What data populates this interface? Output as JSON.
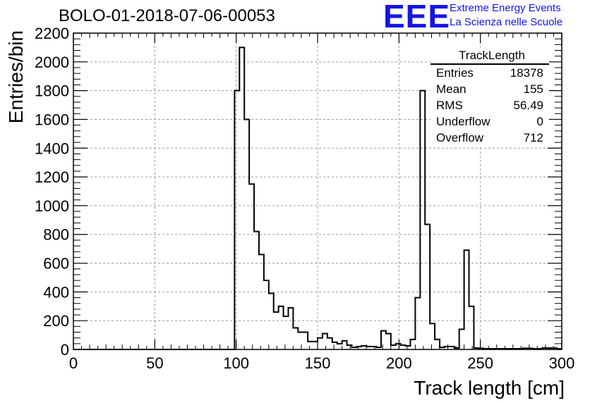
{
  "header": {
    "run_id": "BOLO-01-2018-07-06-00053",
    "logo": "EEE",
    "logo_line1": "Extreme Energy Events",
    "logo_line2": "La Scienza nelle Scuole"
  },
  "stats": {
    "title": "TrackLength",
    "rows": [
      {
        "label": "Entries",
        "value": "18378"
      },
      {
        "label": "Mean",
        "value": "155"
      },
      {
        "label": "RMS",
        "value": "56.49"
      },
      {
        "label": "Underflow",
        "value": "0"
      },
      {
        "label": "Overflow",
        "value": "712"
      }
    ]
  },
  "colors": {
    "logo": "#1515e6",
    "line": "#000000",
    "grid": "#9a9a9a"
  },
  "chart_data": {
    "type": "histogram",
    "xlabel": "Track length [cm]",
    "ylabel": "Entries/bin",
    "xlim": [
      0,
      300
    ],
    "ylim": [
      0,
      2200
    ],
    "xticks": [
      0,
      50,
      100,
      150,
      200,
      250,
      300
    ],
    "yticks": [
      0,
      200,
      400,
      600,
      800,
      1000,
      1200,
      1400,
      1600,
      1800,
      2000,
      2200
    ],
    "grid": true,
    "bin_width": 3,
    "bin_start": 0,
    "values": [
      0,
      0,
      0,
      0,
      0,
      0,
      0,
      0,
      0,
      0,
      0,
      0,
      0,
      0,
      0,
      0,
      0,
      0,
      0,
      0,
      0,
      0,
      0,
      0,
      0,
      0,
      0,
      0,
      0,
      0,
      0,
      0,
      0,
      1800,
      2100,
      1600,
      1150,
      820,
      660,
      480,
      390,
      260,
      300,
      230,
      290,
      150,
      120,
      120,
      55,
      55,
      80,
      110,
      80,
      50,
      40,
      60,
      30,
      15,
      20,
      25,
      20,
      20,
      15,
      130,
      110,
      30,
      40,
      30,
      25,
      70,
      360,
      1800,
      870,
      180,
      70,
      15,
      20,
      20,
      10,
      140,
      690,
      300,
      10,
      8,
      5,
      5,
      5,
      5,
      5,
      5,
      5,
      5,
      8,
      8,
      5,
      5,
      10,
      10,
      10,
      5
    ]
  }
}
